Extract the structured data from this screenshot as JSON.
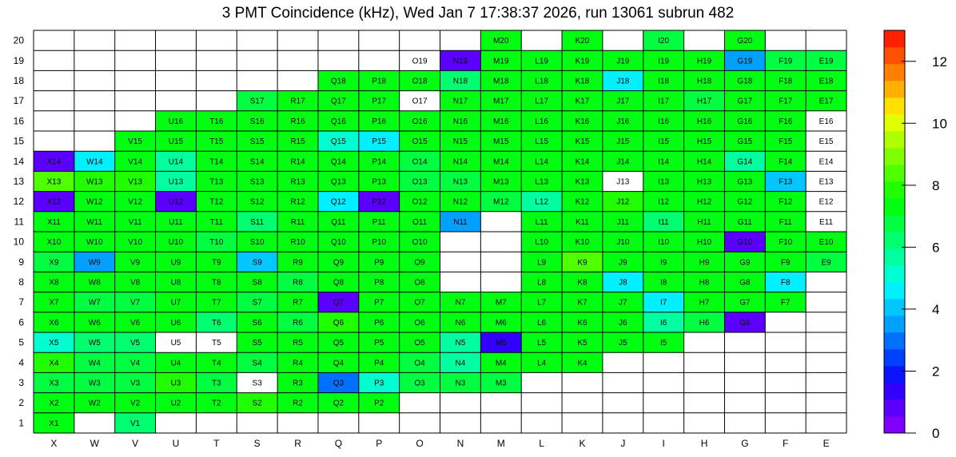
{
  "chart_data": {
    "type": "heatmap",
    "title": "3 PMT Coincidence (kHz), Wed Jan  7 17:38:37 2026, run 13061 subrun 482",
    "columns": [
      "X",
      "W",
      "V",
      "U",
      "T",
      "S",
      "R",
      "Q",
      "P",
      "O",
      "N",
      "M",
      "L",
      "K",
      "J",
      "I",
      "H",
      "G",
      "F",
      "E"
    ],
    "rows": [
      "1",
      "2",
      "3",
      "4",
      "5",
      "6",
      "7",
      "8",
      "9",
      "10",
      "11",
      "12",
      "13",
      "14",
      "15",
      "16",
      "17",
      "18",
      "19",
      "20"
    ],
    "zlim": [
      0,
      13
    ],
    "z_ticks": [
      "0",
      "2",
      "4",
      "6",
      "8",
      "10",
      "12"
    ],
    "palette": [
      "#7f00ff",
      "#5b00ff",
      "#3300ff",
      "#0a14ff",
      "#0040ff",
      "#0070ff",
      "#00a0ff",
      "#00c8ff",
      "#00f0ff",
      "#00ffd0",
      "#00ffa0",
      "#00ff70",
      "#00ff40",
      "#00ff10",
      "#20ff00",
      "#50ff00",
      "#80ff00",
      "#b0ff00",
      "#e0ff00",
      "#ffe000",
      "#ffb000",
      "#ff8000",
      "#ff5000",
      "#ff2000"
    ],
    "cells": [
      {
        "label": "X1",
        "value": 7.2
      },
      {
        "label": "V1",
        "value": 6.2
      },
      {
        "label": "X2",
        "value": 7.2
      },
      {
        "label": "W2",
        "value": 7.2
      },
      {
        "label": "V2",
        "value": 7.4
      },
      {
        "label": "U2",
        "value": 7.4
      },
      {
        "label": "T2",
        "value": 7.2
      },
      {
        "label": "S2",
        "value": 7.6
      },
      {
        "label": "R2",
        "value": 7.2
      },
      {
        "label": "Q2",
        "value": 7.2
      },
      {
        "label": "P2",
        "value": 7.2
      },
      {
        "label": "X3",
        "value": 6.6
      },
      {
        "label": "W3",
        "value": 6.6
      },
      {
        "label": "V3",
        "value": 6.6
      },
      {
        "label": "U3",
        "value": 7.8
      },
      {
        "label": "T3",
        "value": 6.6
      },
      {
        "label": "S3",
        "value": null
      },
      {
        "label": "R3",
        "value": 7.2
      },
      {
        "label": "Q3",
        "value": 3.0
      },
      {
        "label": "P3",
        "value": 5.2
      },
      {
        "label": "O3",
        "value": 6.6
      },
      {
        "label": "N3",
        "value": 6.6
      },
      {
        "label": "M3",
        "value": 6.8
      },
      {
        "label": "X4",
        "value": 7.6
      },
      {
        "label": "W4",
        "value": 6.6
      },
      {
        "label": "V4",
        "value": 6.6
      },
      {
        "label": "U4",
        "value": 7.2
      },
      {
        "label": "T4",
        "value": 7.2
      },
      {
        "label": "S4",
        "value": 6.8
      },
      {
        "label": "R4",
        "value": 7.2
      },
      {
        "label": "Q4",
        "value": 7.2
      },
      {
        "label": "P4",
        "value": 7.2
      },
      {
        "label": "O4",
        "value": 6.8
      },
      {
        "label": "N4",
        "value": 5.6
      },
      {
        "label": "M4",
        "value": 7.2
      },
      {
        "label": "L4",
        "value": 7.2
      },
      {
        "label": "K4",
        "value": 7.2
      },
      {
        "label": "X5",
        "value": 5.4
      },
      {
        "label": "W5",
        "value": 6.2
      },
      {
        "label": "V5",
        "value": 6.2
      },
      {
        "label": "U5",
        "value": null
      },
      {
        "label": "T5",
        "value": null
      },
      {
        "label": "S5",
        "value": 7.2
      },
      {
        "label": "R5",
        "value": 7.2
      },
      {
        "label": "Q5",
        "value": 7.2
      },
      {
        "label": "P5",
        "value": 7.2
      },
      {
        "label": "O5",
        "value": 7.2
      },
      {
        "label": "N5",
        "value": 5.6
      },
      {
        "label": "M5",
        "value": 1.6
      },
      {
        "label": "L5",
        "value": 7.2
      },
      {
        "label": "K5",
        "value": 7.2
      },
      {
        "label": "J5",
        "value": 7.2
      },
      {
        "label": "I5",
        "value": 7.2
      },
      {
        "label": "X6",
        "value": 7.2
      },
      {
        "label": "W6",
        "value": 7.2
      },
      {
        "label": "V6",
        "value": 7.2
      },
      {
        "label": "U6",
        "value": 7.2
      },
      {
        "label": "T6",
        "value": 6.2
      },
      {
        "label": "S6",
        "value": 7.2
      },
      {
        "label": "R6",
        "value": 6.6
      },
      {
        "label": "Q6",
        "value": 7.8
      },
      {
        "label": "P6",
        "value": 7.2
      },
      {
        "label": "O6",
        "value": 7.2
      },
      {
        "label": "N6",
        "value": 7.2
      },
      {
        "label": "M6",
        "value": 7.2
      },
      {
        "label": "L6",
        "value": 7.2
      },
      {
        "label": "K6",
        "value": 7.2
      },
      {
        "label": "J6",
        "value": 7.2
      },
      {
        "label": "I6",
        "value": 5.8
      },
      {
        "label": "H6",
        "value": 6.6
      },
      {
        "label": "G6",
        "value": 0.6
      },
      {
        "label": "X7",
        "value": 7.2
      },
      {
        "label": "W7",
        "value": 6.6
      },
      {
        "label": "V7",
        "value": 6.6
      },
      {
        "label": "U7",
        "value": 7.2
      },
      {
        "label": "T7",
        "value": 7.2
      },
      {
        "label": "S7",
        "value": 6.8
      },
      {
        "label": "R7",
        "value": 7.2
      },
      {
        "label": "Q7",
        "value": 0.6
      },
      {
        "label": "P7",
        "value": 7.2
      },
      {
        "label": "O7",
        "value": 7.2
      },
      {
        "label": "N7",
        "value": 7.2
      },
      {
        "label": "M7",
        "value": 7.2
      },
      {
        "label": "L7",
        "value": 7.2
      },
      {
        "label": "K7",
        "value": 7.2
      },
      {
        "label": "J7",
        "value": 7.2
      },
      {
        "label": "I7",
        "value": 4.4
      },
      {
        "label": "H7",
        "value": 7.2
      },
      {
        "label": "G7",
        "value": 7.2
      },
      {
        "label": "F7",
        "value": 7.2
      },
      {
        "label": "X8",
        "value": 7.2
      },
      {
        "label": "W8",
        "value": 7.2
      },
      {
        "label": "V8",
        "value": 7.2
      },
      {
        "label": "U8",
        "value": 7.2
      },
      {
        "label": "T8",
        "value": 7.2
      },
      {
        "label": "S8",
        "value": 7.2
      },
      {
        "label": "R8",
        "value": 6.6
      },
      {
        "label": "Q8",
        "value": 7.2
      },
      {
        "label": "P8",
        "value": 7.2
      },
      {
        "label": "O8",
        "value": 7.2
      },
      {
        "label": "L8",
        "value": 7.2
      },
      {
        "label": "K8",
        "value": 7.2
      },
      {
        "label": "J8",
        "value": 4.6
      },
      {
        "label": "I8",
        "value": 7.2
      },
      {
        "label": "H8",
        "value": 7.2
      },
      {
        "label": "G8",
        "value": 7.2
      },
      {
        "label": "F8",
        "value": 4.4
      },
      {
        "label": "X9",
        "value": 6.6
      },
      {
        "label": "W9",
        "value": 3.4
      },
      {
        "label": "V9",
        "value": 7.2
      },
      {
        "label": "U9",
        "value": 7.2
      },
      {
        "label": "T9",
        "value": 7.2
      },
      {
        "label": "S9",
        "value": 3.8
      },
      {
        "label": "R9",
        "value": 7.2
      },
      {
        "label": "Q9",
        "value": 7.2
      },
      {
        "label": "P9",
        "value": 7.2
      },
      {
        "label": "O9",
        "value": 7.2
      },
      {
        "label": "L9",
        "value": 7.2
      },
      {
        "label": "K9",
        "value": 8.2
      },
      {
        "label": "J9",
        "value": 7.2
      },
      {
        "label": "I9",
        "value": 7.2
      },
      {
        "label": "H9",
        "value": 7.2
      },
      {
        "label": "G9",
        "value": 7.2
      },
      {
        "label": "F9",
        "value": 7.2
      },
      {
        "label": "E9",
        "value": 6.6
      },
      {
        "label": "X10",
        "value": 7.2
      },
      {
        "label": "W10",
        "value": 7.2
      },
      {
        "label": "V10",
        "value": 7.2
      },
      {
        "label": "U10",
        "value": 7.2
      },
      {
        "label": "T10",
        "value": 6.6
      },
      {
        "label": "S10",
        "value": 7.2
      },
      {
        "label": "R10",
        "value": 7.2
      },
      {
        "label": "Q10",
        "value": 7.2
      },
      {
        "label": "P10",
        "value": 7.2
      },
      {
        "label": "O10",
        "value": 7.2
      },
      {
        "label": "L10",
        "value": 7.2
      },
      {
        "label": "K10",
        "value": 7.2
      },
      {
        "label": "J10",
        "value": 7.2
      },
      {
        "label": "I10",
        "value": 7.2
      },
      {
        "label": "H10",
        "value": 7.2
      },
      {
        "label": "G10",
        "value": 0.6
      },
      {
        "label": "F10",
        "value": 7.2
      },
      {
        "label": "E10",
        "value": 7.2
      },
      {
        "label": "X11",
        "value": 7.2
      },
      {
        "label": "W11",
        "value": 7.2
      },
      {
        "label": "V11",
        "value": 7.2
      },
      {
        "label": "U11",
        "value": 7.2
      },
      {
        "label": "T11",
        "value": 7.2
      },
      {
        "label": "S11",
        "value": 6.0
      },
      {
        "label": "R11",
        "value": 7.2
      },
      {
        "label": "Q11",
        "value": 7.2
      },
      {
        "label": "P11",
        "value": 7.2
      },
      {
        "label": "O11",
        "value": 7.2
      },
      {
        "label": "N11",
        "value": 3.4
      },
      {
        "label": "L11",
        "value": 7.2
      },
      {
        "label": "K11",
        "value": 7.2
      },
      {
        "label": "J11",
        "value": 7.2
      },
      {
        "label": "I11",
        "value": 6.4
      },
      {
        "label": "H11",
        "value": 7.2
      },
      {
        "label": "G11",
        "value": 7.2
      },
      {
        "label": "F11",
        "value": 7.2
      },
      {
        "label": "E11",
        "value": null
      },
      {
        "label": "X12",
        "value": 0.6
      },
      {
        "label": "W12",
        "value": 7.2
      },
      {
        "label": "V12",
        "value": 7.2
      },
      {
        "label": "U12",
        "value": 0.6
      },
      {
        "label": "T12",
        "value": 7.2
      },
      {
        "label": "S12",
        "value": 7.2
      },
      {
        "label": "R12",
        "value": 7.2
      },
      {
        "label": "Q12",
        "value": 4.4
      },
      {
        "label": "P12",
        "value": 0.6
      },
      {
        "label": "O12",
        "value": 7.2
      },
      {
        "label": "N12",
        "value": 7.2
      },
      {
        "label": "M12",
        "value": 6.6
      },
      {
        "label": "L12",
        "value": 5.6
      },
      {
        "label": "K12",
        "value": 7.2
      },
      {
        "label": "J12",
        "value": 7.8
      },
      {
        "label": "I12",
        "value": 7.2
      },
      {
        "label": "H12",
        "value": 7.2
      },
      {
        "label": "G12",
        "value": 7.2
      },
      {
        "label": "F12",
        "value": 7.2
      },
      {
        "label": "E12",
        "value": null
      },
      {
        "label": "X13",
        "value": 8.2
      },
      {
        "label": "W13",
        "value": 7.8
      },
      {
        "label": "V13",
        "value": 7.8
      },
      {
        "label": "U13",
        "value": 5.6
      },
      {
        "label": "T13",
        "value": 7.2
      },
      {
        "label": "S13",
        "value": 7.2
      },
      {
        "label": "R13",
        "value": 7.2
      },
      {
        "label": "Q13",
        "value": 7.2
      },
      {
        "label": "P13",
        "value": 7.2
      },
      {
        "label": "O13",
        "value": 6.6
      },
      {
        "label": "N13",
        "value": 6.6
      },
      {
        "label": "M13",
        "value": 7.2
      },
      {
        "label": "L13",
        "value": 7.2
      },
      {
        "label": "K13",
        "value": 7.2
      },
      {
        "label": "J13",
        "value": null
      },
      {
        "label": "I13",
        "value": 7.2
      },
      {
        "label": "H13",
        "value": 7.2
      },
      {
        "label": "G13",
        "value": 7.2
      },
      {
        "label": "F13",
        "value": 4.2
      },
      {
        "label": "E13",
        "value": null
      },
      {
        "label": "X14",
        "value": 0.6
      },
      {
        "label": "W14",
        "value": 4.6
      },
      {
        "label": "V14",
        "value": 7.2
      },
      {
        "label": "U14",
        "value": 5.6
      },
      {
        "label": "T14",
        "value": 7.2
      },
      {
        "label": "S14",
        "value": 7.2
      },
      {
        "label": "R14",
        "value": 7.2
      },
      {
        "label": "Q14",
        "value": 7.2
      },
      {
        "label": "P14",
        "value": 7.2
      },
      {
        "label": "O14",
        "value": 6.6
      },
      {
        "label": "N14",
        "value": 7.2
      },
      {
        "label": "M14",
        "value": 7.2
      },
      {
        "label": "L14",
        "value": 7.2
      },
      {
        "label": "K14",
        "value": 7.2
      },
      {
        "label": "J14",
        "value": 7.2
      },
      {
        "label": "I14",
        "value": 7.2
      },
      {
        "label": "H14",
        "value": 7.2
      },
      {
        "label": "G14",
        "value": 5.8
      },
      {
        "label": "F14",
        "value": 7.2
      },
      {
        "label": "E14",
        "value": null
      },
      {
        "label": "V15",
        "value": 7.2
      },
      {
        "label": "U15",
        "value": 7.2
      },
      {
        "label": "T15",
        "value": 7.2
      },
      {
        "label": "S15",
        "value": 7.2
      },
      {
        "label": "R15",
        "value": 7.2
      },
      {
        "label": "Q15",
        "value": 5.0
      },
      {
        "label": "P15",
        "value": 4.4
      },
      {
        "label": "O15",
        "value": 7.2
      },
      {
        "label": "N15",
        "value": 7.2
      },
      {
        "label": "M15",
        "value": 7.2
      },
      {
        "label": "L15",
        "value": 7.2
      },
      {
        "label": "K15",
        "value": 7.2
      },
      {
        "label": "J15",
        "value": 7.2
      },
      {
        "label": "I15",
        "value": 7.2
      },
      {
        "label": "H15",
        "value": 7.2
      },
      {
        "label": "G15",
        "value": 7.2
      },
      {
        "label": "F15",
        "value": 7.2
      },
      {
        "label": "E15",
        "value": null
      },
      {
        "label": "U16",
        "value": 7.2
      },
      {
        "label": "T16",
        "value": 7.2
      },
      {
        "label": "S16",
        "value": 7.2
      },
      {
        "label": "R16",
        "value": 7.2
      },
      {
        "label": "Q16",
        "value": 7.2
      },
      {
        "label": "P16",
        "value": 7.2
      },
      {
        "label": "O16",
        "value": 7.2
      },
      {
        "label": "N16",
        "value": 7.2
      },
      {
        "label": "M16",
        "value": 7.2
      },
      {
        "label": "L16",
        "value": 7.2
      },
      {
        "label": "K16",
        "value": 7.2
      },
      {
        "label": "J16",
        "value": 7.2
      },
      {
        "label": "I16",
        "value": 7.2
      },
      {
        "label": "H16",
        "value": 7.2
      },
      {
        "label": "G16",
        "value": 7.2
      },
      {
        "label": "F16",
        "value": 7.2
      },
      {
        "label": "E16",
        "value": null
      },
      {
        "label": "S17",
        "value": 6.6
      },
      {
        "label": "R17",
        "value": 7.2
      },
      {
        "label": "Q17",
        "value": 7.2
      },
      {
        "label": "P17",
        "value": 7.2
      },
      {
        "label": "O17",
        "value": null
      },
      {
        "label": "N17",
        "value": 7.2
      },
      {
        "label": "M17",
        "value": 7.2
      },
      {
        "label": "L17",
        "value": 7.2
      },
      {
        "label": "K17",
        "value": 7.2
      },
      {
        "label": "J17",
        "value": 7.2
      },
      {
        "label": "I17",
        "value": 7.2
      },
      {
        "label": "H17",
        "value": 6.6
      },
      {
        "label": "G17",
        "value": 7.2
      },
      {
        "label": "F17",
        "value": 7.2
      },
      {
        "label": "E17",
        "value": 7.2
      },
      {
        "label": "Q18",
        "value": 7.2
      },
      {
        "label": "P18",
        "value": 7.2
      },
      {
        "label": "O18",
        "value": 7.2
      },
      {
        "label": "N18",
        "value": 6.0
      },
      {
        "label": "M18",
        "value": 7.2
      },
      {
        "label": "L18",
        "value": 7.2
      },
      {
        "label": "K18",
        "value": 7.2
      },
      {
        "label": "J18",
        "value": 4.6
      },
      {
        "label": "I18",
        "value": 7.2
      },
      {
        "label": "H18",
        "value": 7.2
      },
      {
        "label": "G18",
        "value": 7.2
      },
      {
        "label": "F18",
        "value": 7.2
      },
      {
        "label": "E18",
        "value": 7.2
      },
      {
        "label": "O19",
        "value": null
      },
      {
        "label": "N19",
        "value": 0.6
      },
      {
        "label": "M19",
        "value": 7.2
      },
      {
        "label": "L19",
        "value": 7.2
      },
      {
        "label": "K19",
        "value": 7.2
      },
      {
        "label": "J19",
        "value": 7.2
      },
      {
        "label": "I19",
        "value": 7.2
      },
      {
        "label": "H19",
        "value": 7.2
      },
      {
        "label": "G19",
        "value": 3.6
      },
      {
        "label": "F19",
        "value": 6.6
      },
      {
        "label": "E19",
        "value": 6.6
      },
      {
        "label": "M20",
        "value": 7.2
      },
      {
        "label": "K20",
        "value": 7.2
      },
      {
        "label": "I20",
        "value": 6.6
      },
      {
        "label": "G20",
        "value": 7.2
      }
    ]
  }
}
